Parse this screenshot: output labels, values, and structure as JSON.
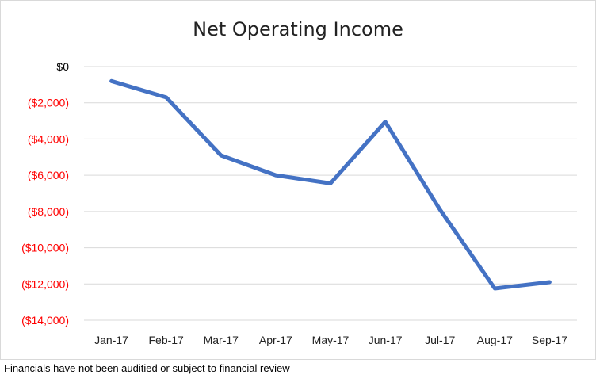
{
  "footnote": "Financials have not been auditied or subject to financial review",
  "chart_data": {
    "type": "line",
    "title": "Net Operating Income",
    "xlabel": "",
    "ylabel": "",
    "categories": [
      "Jan-17",
      "Feb-17",
      "Mar-17",
      "Apr-17",
      "May-17",
      "Jun-17",
      "Jul-17",
      "Aug-17",
      "Sep-17"
    ],
    "series": [
      {
        "values": [
          -800,
          -1700,
          -4900,
          -6000,
          -6450,
          -3050,
          -7900,
          -12250,
          -11900
        ],
        "color": "#4472c4"
      }
    ],
    "ylim": [
      -14000,
      0
    ],
    "yticks": [
      0,
      -2000,
      -4000,
      -6000,
      -8000,
      -10000,
      -12000,
      -14000
    ],
    "ytick_labels": [
      "$0",
      "($2,000)",
      "($4,000)",
      "($6,000)",
      "($8,000)",
      "($10,000)",
      "($12,000)",
      "($14,000)"
    ],
    "ytick_colors": [
      "#000000",
      "#ff0000",
      "#ff0000",
      "#ff0000",
      "#ff0000",
      "#ff0000",
      "#ff0000",
      "#ff0000"
    ],
    "grid": true,
    "legend": "none"
  }
}
